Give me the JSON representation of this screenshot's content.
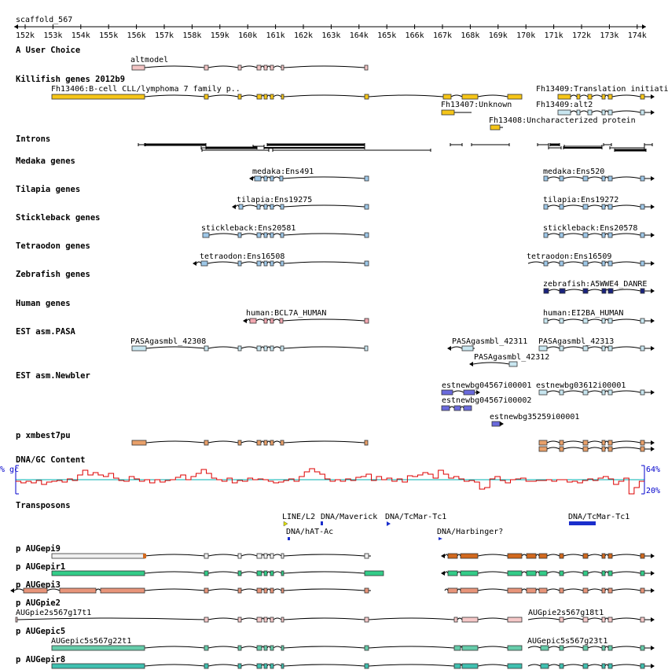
{
  "scaffold": "scaffold_567",
  "ruler_ticks": [
    "152k",
    "153k",
    "154k",
    "155k",
    "156k",
    "157k",
    "158k",
    "159k",
    "160k",
    "161k",
    "162k",
    "163k",
    "164k",
    "165k",
    "166k",
    "167k",
    "168k",
    "169k",
    "170k",
    "171k",
    "172k",
    "173k",
    "174k"
  ],
  "colors": {
    "gene_line": "#000000",
    "user_exon": "#f2c4c4",
    "killifish_exon": "#f5c518",
    "intron_line": "#000000",
    "medaka_exon": "#9ec8e8",
    "tilapia_exon": "#9ec8e8",
    "stickleback_exon": "#9ec8e8",
    "tetraodon_exon": "#9ec8e8",
    "zebrafish_exon": "#1a237e",
    "human_exon": "#f2a7b0",
    "pasa_exon": "#c8e6f0",
    "newbler_exon": "#6a6adc",
    "xmbest_exon": "#e8a06a",
    "gc_line": "#dd0000",
    "gc_mid": "#00b0b0",
    "gc_axis": "#0000cc",
    "transposon": "#1a2ecc",
    "aug9_exon": "#d2691e",
    "aug1_exon": "#33cc88",
    "aug3_exon": "#e8957a",
    "aug2_exon": "#f5c8c8",
    "augc5_exon": "#66ccaa",
    "aug8_exon": "#40c0b0"
  },
  "tracks": [
    {
      "title": "A User Choice",
      "features": [
        {
          "label": "altmodel"
        }
      ]
    },
    {
      "title": "Killifish genes 2012b9",
      "features": [
        {
          "label": "Fh13406:B-cell CLL/lymphoma 7 family p.."
        },
        {
          "label": "Fh13409:Translation initiati"
        },
        {
          "label": "Fh13407:Unknown"
        },
        {
          "label": "Fh13409:alt2"
        },
        {
          "label": "Fh13408:Uncharacterized protein"
        }
      ]
    },
    {
      "title": "Introns",
      "features": []
    },
    {
      "title": "Medaka genes",
      "features": [
        {
          "label": "medaka:Ens491"
        },
        {
          "label": "medaka:Ens520"
        }
      ]
    },
    {
      "title": "Tilapia genes",
      "features": [
        {
          "label": "tilapia:Ens19275"
        },
        {
          "label": "tilapia:Ens19272"
        }
      ]
    },
    {
      "title": "Stickleback genes",
      "features": [
        {
          "label": "stickleback:Ens20581"
        },
        {
          "label": "stickleback:Ens20578"
        }
      ]
    },
    {
      "title": "Tetraodon genes",
      "features": [
        {
          "label": "tetraodon:Ens16508"
        },
        {
          "label": "tetraodon:Ens16509"
        }
      ]
    },
    {
      "title": "Zebrafish genes",
      "features": [
        {
          "label": "zebrafish:A5WWE4_DANRE"
        }
      ]
    },
    {
      "title": "Human genes",
      "features": [
        {
          "label": "human:BCL7A_HUMAN"
        },
        {
          "label": "human:EI2BA_HUMAN"
        }
      ]
    },
    {
      "title": "EST asm.PASA",
      "features": [
        {
          "label": "PASAgasmbl_42308"
        },
        {
          "label": "PASAgasmbl_42311"
        },
        {
          "label": "PASAgasmbl_42313"
        },
        {
          "label": "PASAgasmbl_42312"
        }
      ]
    },
    {
      "title": "EST asm.Newbler",
      "features": [
        {
          "label": "estnewbg04567i00001"
        },
        {
          "label": "estnewbg03612i00001"
        },
        {
          "label": "estnewbg04567i00002"
        },
        {
          "label": "estnewbg35259i00001"
        }
      ]
    },
    {
      "title": "p xmbest7pu",
      "features": []
    },
    {
      "title": "DNA/GC Content",
      "features": []
    },
    {
      "title": "Transposons",
      "features": [
        {
          "label": "LINE/L2"
        },
        {
          "label": "DNA/Maverick"
        },
        {
          "label": "DNA/TcMar-Tc1"
        },
        {
          "label": "DNA/TcMar-Tc1"
        },
        {
          "label": "DNA/hAT-Ac"
        },
        {
          "label": "DNA/Harbinger?"
        }
      ]
    },
    {
      "title": "p AUGepi9",
      "features": []
    },
    {
      "title": "p AUGepir1",
      "features": []
    },
    {
      "title": "p AUGepi3",
      "features": []
    },
    {
      "title": "p AUGpie2",
      "features": [
        {
          "label": "AUGpie2s567g17t1"
        },
        {
          "label": "AUGpie2s567g18t1"
        }
      ]
    },
    {
      "title": "p AUGepic5",
      "features": [
        {
          "label": "AUGepic5s567g22t1"
        },
        {
          "label": "AUGepic5s567g23t1"
        }
      ]
    },
    {
      "title": "p AUGepir8",
      "features": []
    }
  ],
  "gc": {
    "left_label": "% gc",
    "top_label": "64%",
    "bottom_label": "20%"
  }
}
